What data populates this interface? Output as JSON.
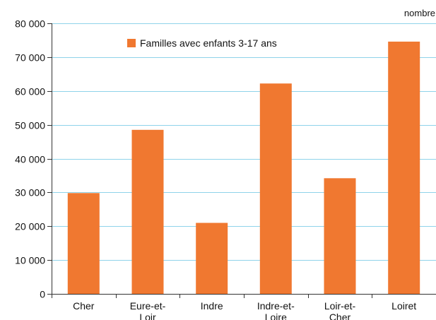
{
  "chart_data": {
    "type": "bar",
    "unit_label": "nombre",
    "categories": [
      [
        "Cher"
      ],
      [
        "Eure-et-",
        "Loir"
      ],
      [
        "Indre"
      ],
      [
        "Indre-et-",
        "Loire"
      ],
      [
        "Loir-et-",
        "Cher"
      ],
      [
        "Loiret"
      ]
    ],
    "series": [
      {
        "name": "Familles avec enfants 3-17 ans",
        "color": "#f07830",
        "values": [
          29800,
          48500,
          21000,
          62200,
          34200,
          74600
        ]
      }
    ],
    "ylim": [
      0,
      80000
    ],
    "yticks": [
      0,
      10000,
      20000,
      30000,
      40000,
      50000,
      60000,
      70000,
      80000
    ],
    "ytick_labels": [
      "0",
      "10 000",
      "20 000",
      "30 000",
      "40 000",
      "50 000",
      "60 000",
      "70 000",
      "80 000"
    ],
    "grid": true,
    "grid_color": "#8fd3ea",
    "legend_position": "top-left-inside"
  }
}
